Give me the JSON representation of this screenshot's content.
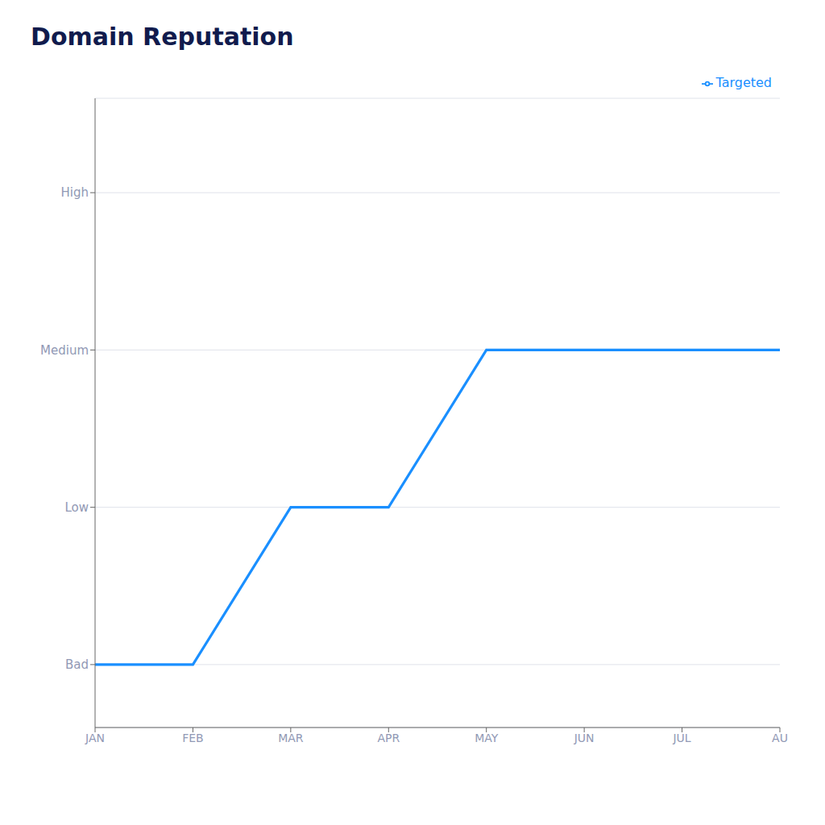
{
  "chart_data": {
    "type": "line",
    "title": "Domain Reputation",
    "categories": [
      "JAN",
      "FEB",
      "MAR",
      "APR",
      "MAY",
      "JUN",
      "JUL",
      "AU"
    ],
    "series": [
      {
        "name": "Targeted",
        "color": "#1A8FFF",
        "values": [
          0,
          0,
          1,
          1,
          2,
          2,
          2,
          2
        ]
      }
    ],
    "ylim": [
      -0.4,
      3.6
    ],
    "yticks": [
      {
        "value": 0,
        "label": "Bad"
      },
      {
        "value": 1,
        "label": "Low"
      },
      {
        "value": 2,
        "label": "Medium"
      },
      {
        "value": 3,
        "label": "High"
      }
    ],
    "grid": "y",
    "legend": "upper right"
  }
}
